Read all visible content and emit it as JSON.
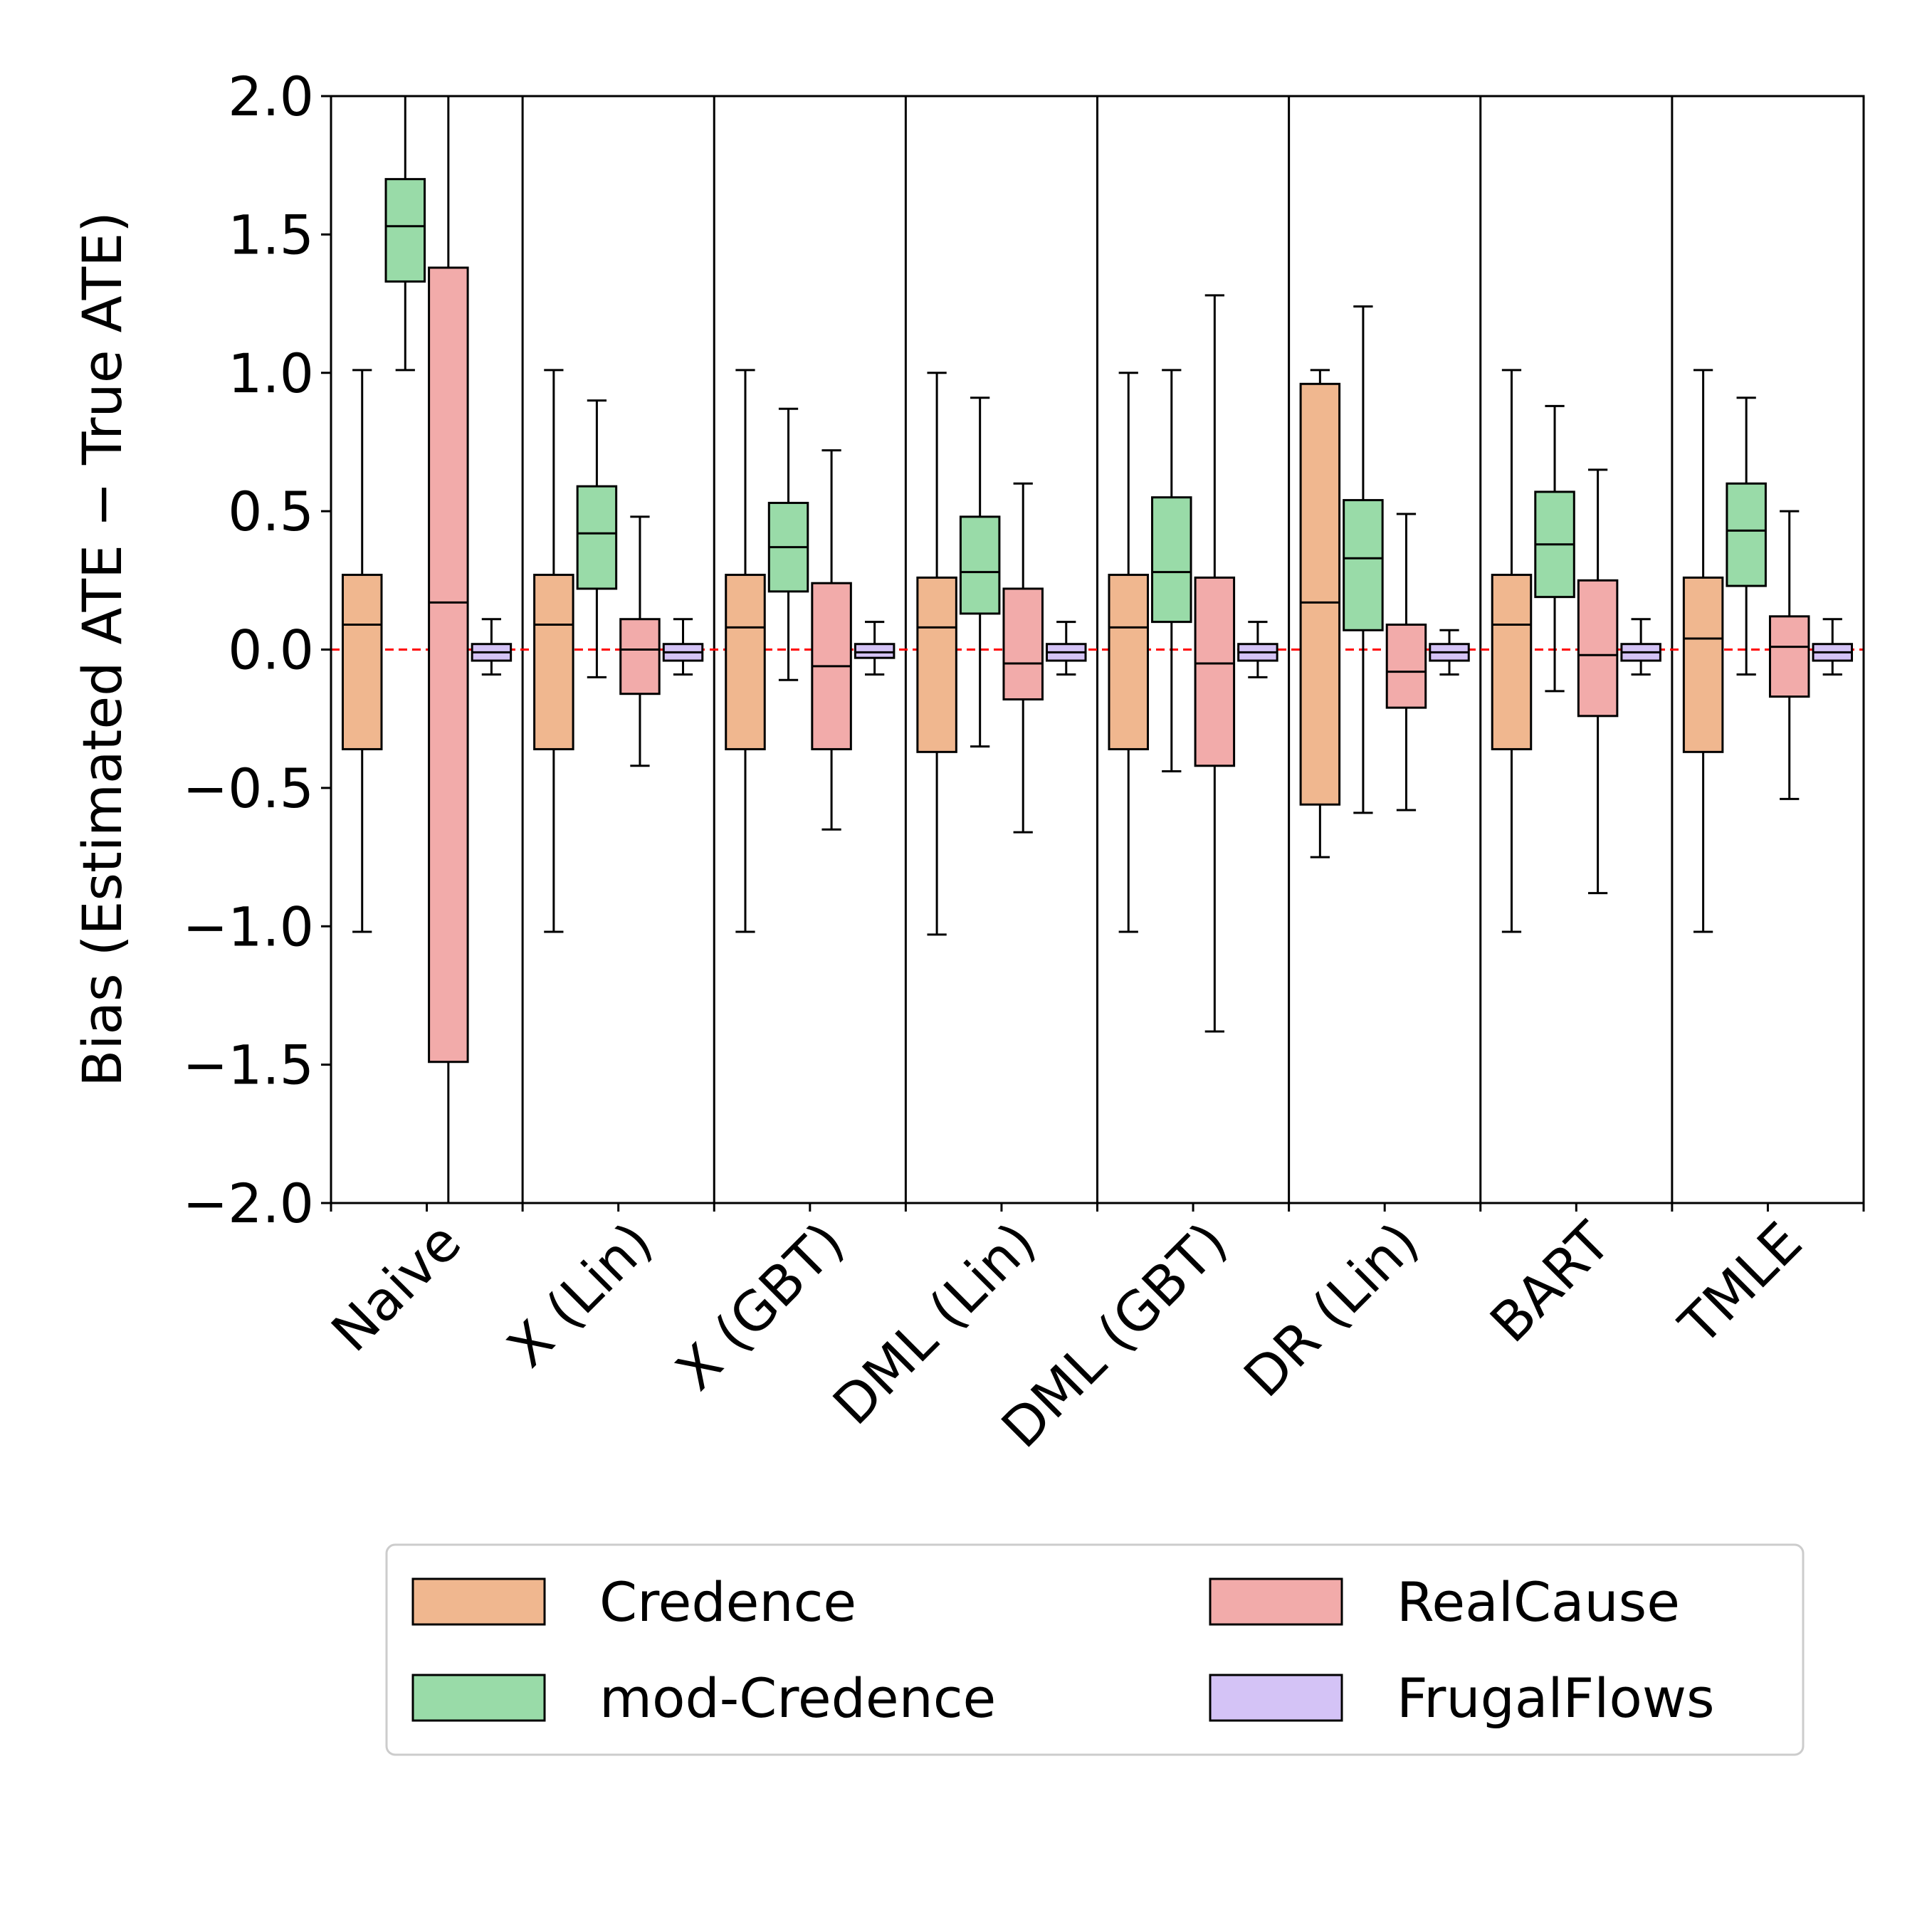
{
  "colors": {
    "Credence": "#F0B78F",
    "mod-Credence": "#99DBA8",
    "RealCause": "#F2ABAA",
    "FrugalFlows": "#D4C3F6",
    "reference_line": "#FF0000",
    "median": "#000000",
    "legend_border": "#CCCCCC"
  },
  "chart_data": {
    "type": "box",
    "ylabel": "Bias (Estimated ATE − True ATE)",
    "xlabel": "",
    "ylim": [
      -2.0,
      2.0
    ],
    "yticks": [
      2.0,
      1.5,
      1.0,
      0.5,
      0.0,
      -0.5,
      -1.0,
      -1.5,
      -2.0
    ],
    "ytick_labels": [
      "2.0",
      "1.5",
      "1.0",
      "0.5",
      "0.0",
      "−0.5",
      "−1.0",
      "−1.5",
      "−2.0"
    ],
    "reference_line": 0.0,
    "categories": [
      "Naive",
      "X (Lin)",
      "X (GBT)",
      "DML (Lin)",
      "DML (GBT)",
      "DR (Lin)",
      "BART",
      "TMLE"
    ],
    "legend": {
      "placement": "below plot",
      "columns": 2,
      "entries": [
        "Credence",
        "mod-Credence",
        "RealCause",
        "FrugalFlows"
      ]
    },
    "series": [
      {
        "name": "Credence",
        "boxes": [
          {
            "whislo": -1.02,
            "q1": -0.36,
            "med": 0.09,
            "q3": 0.27,
            "whishi": 1.01
          },
          {
            "whislo": -1.02,
            "q1": -0.36,
            "med": 0.09,
            "q3": 0.27,
            "whishi": 1.01
          },
          {
            "whislo": -1.02,
            "q1": -0.36,
            "med": 0.08,
            "q3": 0.27,
            "whishi": 1.01
          },
          {
            "whislo": -1.03,
            "q1": -0.37,
            "med": 0.08,
            "q3": 0.26,
            "whishi": 1.0
          },
          {
            "whislo": -1.02,
            "q1": -0.36,
            "med": 0.08,
            "q3": 0.27,
            "whishi": 1.0
          },
          {
            "whislo": -0.75,
            "q1": -0.56,
            "med": 0.17,
            "q3": 0.96,
            "whishi": 1.01
          },
          {
            "whislo": -1.02,
            "q1": -0.36,
            "med": 0.09,
            "q3": 0.27,
            "whishi": 1.01
          },
          {
            "whislo": -1.02,
            "q1": -0.37,
            "med": 0.04,
            "q3": 0.26,
            "whishi": 1.01
          }
        ]
      },
      {
        "name": "mod-Credence",
        "boxes": [
          {
            "whislo": 1.01,
            "q1": 1.33,
            "med": 1.53,
            "q3": 1.7,
            "whishi": 2.0
          },
          {
            "whislo": -0.1,
            "q1": 0.22,
            "med": 0.42,
            "q3": 0.59,
            "whishi": 0.9
          },
          {
            "whislo": -0.11,
            "q1": 0.21,
            "med": 0.37,
            "q3": 0.53,
            "whishi": 0.87
          },
          {
            "whislo": -0.35,
            "q1": 0.13,
            "med": 0.28,
            "q3": 0.48,
            "whishi": 0.91
          },
          {
            "whislo": -0.44,
            "q1": 0.1,
            "med": 0.28,
            "q3": 0.55,
            "whishi": 1.01
          },
          {
            "whislo": -0.59,
            "q1": 0.07,
            "med": 0.33,
            "q3": 0.54,
            "whishi": 1.24
          },
          {
            "whislo": -0.15,
            "q1": 0.19,
            "med": 0.38,
            "q3": 0.57,
            "whishi": 0.88
          },
          {
            "whislo": -0.09,
            "q1": 0.23,
            "med": 0.43,
            "q3": 0.6,
            "whishi": 0.91
          }
        ]
      },
      {
        "name": "RealCause",
        "boxes": [
          {
            "whislo": -2.0,
            "q1": -1.49,
            "med": 0.17,
            "q3": 1.38,
            "whishi": 2.0
          },
          {
            "whislo": -0.42,
            "q1": -0.16,
            "med": 0.0,
            "q3": 0.11,
            "whishi": 0.48
          },
          {
            "whislo": -0.65,
            "q1": -0.36,
            "med": -0.06,
            "q3": 0.24,
            "whishi": 0.72
          },
          {
            "whislo": -0.66,
            "q1": -0.18,
            "med": -0.05,
            "q3": 0.22,
            "whishi": 0.6
          },
          {
            "whislo": -1.38,
            "q1": -0.42,
            "med": -0.05,
            "q3": 0.26,
            "whishi": 1.28
          },
          {
            "whislo": -0.58,
            "q1": -0.21,
            "med": -0.08,
            "q3": 0.09,
            "whishi": 0.49
          },
          {
            "whislo": -0.88,
            "q1": -0.24,
            "med": -0.02,
            "q3": 0.25,
            "whishi": 0.65
          },
          {
            "whislo": -0.54,
            "q1": -0.17,
            "med": 0.01,
            "q3": 0.12,
            "whishi": 0.5
          }
        ]
      },
      {
        "name": "FrugalFlows",
        "boxes": [
          {
            "whislo": -0.09,
            "q1": -0.04,
            "med": -0.01,
            "q3": 0.02,
            "whishi": 0.11
          },
          {
            "whislo": -0.09,
            "q1": -0.04,
            "med": -0.01,
            "q3": 0.02,
            "whishi": 0.11
          },
          {
            "whislo": -0.09,
            "q1": -0.03,
            "med": -0.01,
            "q3": 0.02,
            "whishi": 0.1
          },
          {
            "whislo": -0.09,
            "q1": -0.04,
            "med": -0.01,
            "q3": 0.02,
            "whishi": 0.1
          },
          {
            "whislo": -0.1,
            "q1": -0.04,
            "med": -0.01,
            "q3": 0.02,
            "whishi": 0.1
          },
          {
            "whislo": -0.09,
            "q1": -0.04,
            "med": -0.01,
            "q3": 0.02,
            "whishi": 0.07
          },
          {
            "whislo": -0.09,
            "q1": -0.04,
            "med": -0.01,
            "q3": 0.02,
            "whishi": 0.11
          },
          {
            "whislo": -0.09,
            "q1": -0.04,
            "med": -0.01,
            "q3": 0.02,
            "whishi": 0.11
          }
        ]
      }
    ]
  }
}
